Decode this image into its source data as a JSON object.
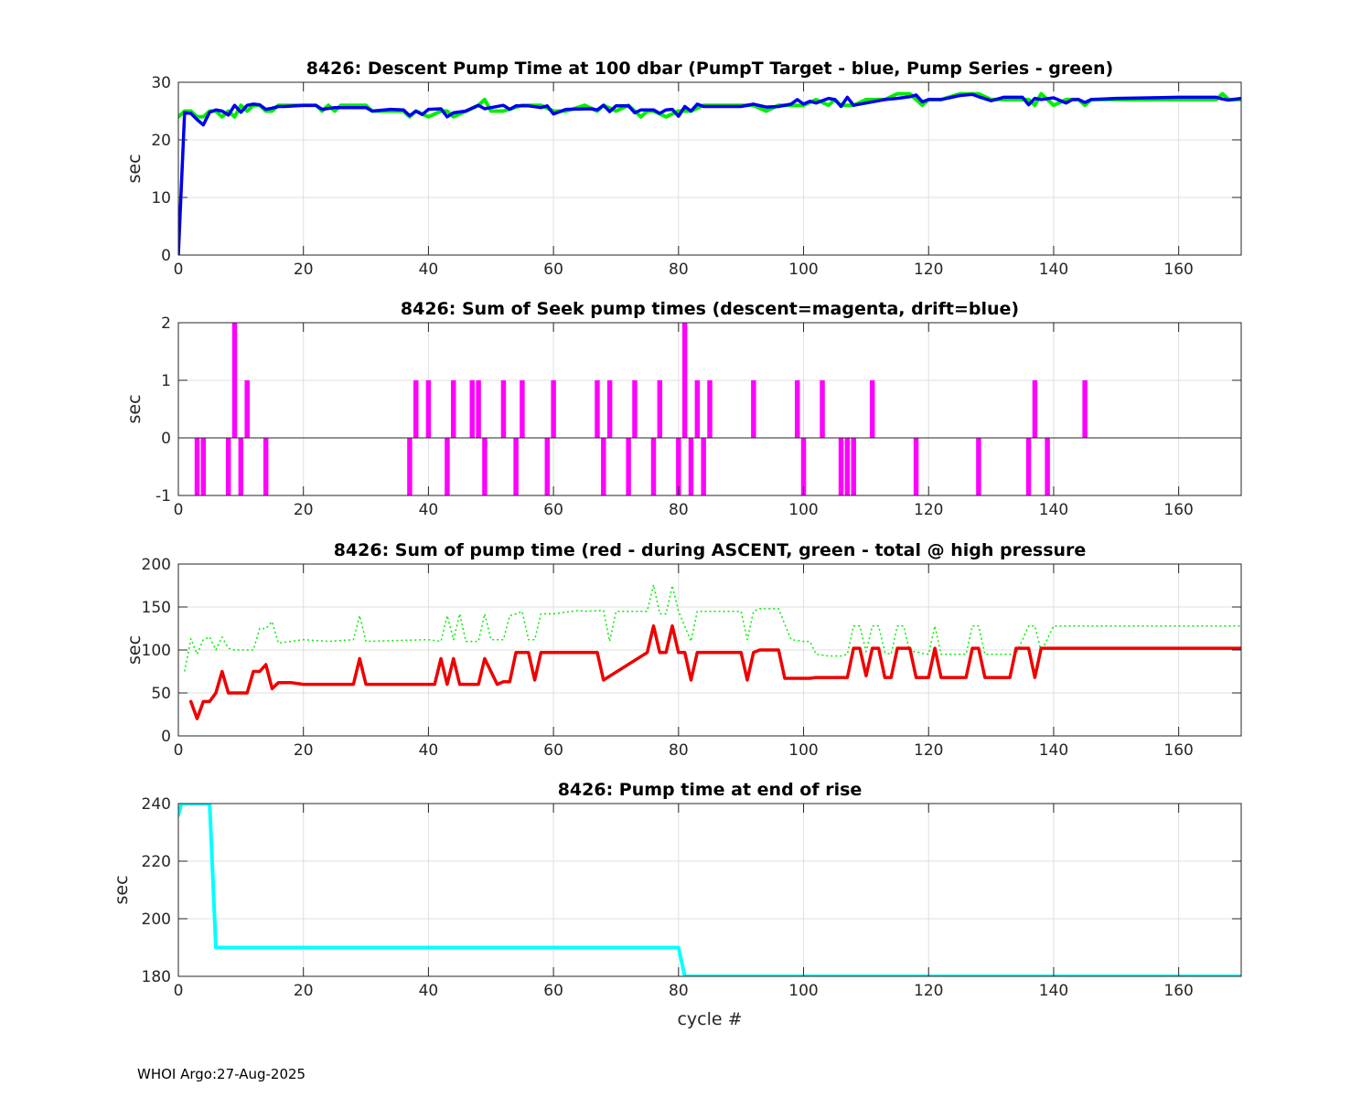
{
  "footer": "WHOI Argo:27-Aug-2025",
  "chart_data": [
    {
      "type": "line",
      "title": "8426: Descent Pump Time at 100 dbar (PumpT Target - blue, Pump Series - green)",
      "xlabel": "",
      "ylabel": "sec",
      "xlim": [
        0,
        170
      ],
      "ylim": [
        0,
        30
      ],
      "xticks": [
        0,
        20,
        40,
        60,
        80,
        100,
        120,
        140,
        160
      ],
      "yticks": [
        0,
        10,
        20,
        30
      ],
      "grid": true,
      "series": [
        {
          "color": "#00ee00",
          "style": "solid",
          "width": 4,
          "x": [
            0,
            1,
            2,
            3,
            4,
            5,
            6,
            7,
            8,
            9,
            10,
            11,
            12,
            13,
            14,
            15,
            16,
            17,
            20,
            22,
            23,
            24,
            25,
            26,
            30,
            31,
            34,
            36,
            37,
            38,
            40,
            42,
            43,
            44,
            46,
            48,
            49,
            50,
            52,
            55,
            58,
            60,
            62,
            65,
            67,
            68,
            70,
            72,
            74,
            75,
            76,
            78,
            80,
            82,
            84,
            86,
            90,
            92,
            94,
            96,
            98,
            100,
            102,
            104,
            105,
            106,
            108,
            110,
            113,
            115,
            117,
            118,
            119,
            120,
            122,
            125,
            128,
            130,
            132,
            135,
            136,
            137,
            138,
            140,
            142,
            144,
            145,
            146,
            150,
            160,
            166,
            167,
            168,
            170
          ],
          "y": [
            24,
            25,
            25,
            24,
            24,
            25,
            25,
            24,
            25,
            24,
            26,
            25,
            26,
            26,
            25,
            25,
            26,
            26,
            26,
            26,
            25,
            26,
            25,
            26,
            26,
            25,
            25,
            25,
            24,
            25,
            24,
            25,
            25,
            24,
            25,
            26,
            27,
            25,
            25,
            26,
            26,
            25,
            25,
            26,
            25,
            26,
            25,
            26,
            24,
            25,
            25,
            24,
            25,
            25,
            26,
            26,
            26,
            26,
            25,
            26,
            26,
            26,
            27,
            26,
            27,
            26,
            26,
            27,
            27,
            28,
            28,
            27,
            26,
            27,
            27,
            28,
            28,
            27,
            27,
            27,
            27,
            26,
            28,
            26,
            27,
            27,
            26,
            27,
            27,
            27,
            27,
            28,
            27,
            27
          ]
        },
        {
          "color": "#0000ee",
          "style": "solid",
          "width": 3.5,
          "x": [
            0,
            1,
            2,
            3,
            4,
            5,
            6,
            7,
            8,
            9,
            10,
            11,
            12,
            13,
            14,
            15,
            16,
            17,
            20,
            22,
            23,
            25,
            30,
            31,
            34,
            36,
            37,
            38,
            39,
            40,
            42,
            43,
            44,
            46,
            48,
            49,
            50,
            52,
            53,
            54,
            56,
            58,
            59,
            60,
            62,
            66,
            67,
            68,
            69,
            70,
            72,
            73,
            74,
            76,
            77,
            78,
            79,
            80,
            81,
            82,
            83,
            84,
            86,
            90,
            92,
            94,
            96,
            98,
            99,
            100,
            101,
            102,
            104,
            105,
            106,
            107,
            108,
            110,
            113,
            115,
            117,
            118,
            119,
            120,
            122,
            125,
            127,
            128,
            130,
            132,
            134,
            135,
            136,
            137,
            138,
            140,
            142,
            143,
            144,
            145,
            146,
            150,
            160,
            165,
            166,
            167,
            168,
            170
          ],
          "y": [
            0,
            24.7,
            24.6,
            23.5,
            22.6,
            24.8,
            25.2,
            25.0,
            24.3,
            26.0,
            24.8,
            26.0,
            26.2,
            26.1,
            25.3,
            25.5,
            25.8,
            25.8,
            26.0,
            26.0,
            25.3,
            25.6,
            25.6,
            25.0,
            25.3,
            25.2,
            24.2,
            25.0,
            24.4,
            25.3,
            25.4,
            24.0,
            24.7,
            25.0,
            26.0,
            25.4,
            25.6,
            26.0,
            25.3,
            25.9,
            25.9,
            25.6,
            25.9,
            24.5,
            25.3,
            25.4,
            25.2,
            26.0,
            24.9,
            25.9,
            25.9,
            24.7,
            25.2,
            25.2,
            24.6,
            25.2,
            25.3,
            24.1,
            25.8,
            25.0,
            26.2,
            25.8,
            25.8,
            25.8,
            26.2,
            25.7,
            25.8,
            26.2,
            27.0,
            26.2,
            26.7,
            26.4,
            27.2,
            27.0,
            25.8,
            27.4,
            26.0,
            26.4,
            27.0,
            27.2,
            27.5,
            27.8,
            26.6,
            27.0,
            27.0,
            27.7,
            27.9,
            27.5,
            26.8,
            27.4,
            27.4,
            27.4,
            26.1,
            27.2,
            27.0,
            27.3,
            26.4,
            27.0,
            27.0,
            26.5,
            27.0,
            27.2,
            27.4,
            27.4,
            27.4,
            27.1,
            26.9,
            27.2
          ]
        }
      ]
    },
    {
      "type": "bar",
      "title": "8426: Sum of Seek pump times (descent=magenta, drift=blue)",
      "xlabel": "",
      "ylabel": "sec",
      "xlim": [
        0,
        170
      ],
      "ylim": [
        -1,
        2
      ],
      "xticks": [
        0,
        20,
        40,
        60,
        80,
        100,
        120,
        140,
        160
      ],
      "yticks": [
        -1,
        0,
        1,
        2
      ],
      "grid": true,
      "series": [
        {
          "name": "descent",
          "color": "#ff00ff",
          "x": [
            3,
            4,
            8,
            9,
            10,
            11,
            14,
            37,
            38,
            40,
            43,
            44,
            47,
            48,
            49,
            52,
            54,
            55,
            59,
            60,
            67,
            68,
            69,
            72,
            73,
            76,
            77,
            80,
            81,
            82,
            83,
            84,
            85,
            92,
            99,
            100,
            103,
            106,
            107,
            108,
            111,
            118,
            128,
            136,
            137,
            139,
            145
          ],
          "values": [
            -1,
            -1,
            -1,
            2,
            -1,
            1,
            -1,
            -1,
            1,
            1,
            -1,
            1,
            1,
            1,
            -1,
            1,
            -1,
            1,
            -1,
            1,
            1,
            -1,
            1,
            -1,
            1,
            -1,
            1,
            -1,
            2,
            -1,
            1,
            -1,
            1,
            1,
            1,
            -1,
            1,
            -1,
            -1,
            -1,
            1,
            -1,
            -1,
            -1,
            1,
            -1,
            1
          ]
        }
      ]
    },
    {
      "type": "line",
      "title": "8426: Sum of pump time (red - during ASCENT, green - total @ high pressure",
      "xlabel": "",
      "ylabel": "sec",
      "xlim": [
        0,
        170
      ],
      "ylim": [
        0,
        200
      ],
      "xticks": [
        0,
        20,
        40,
        60,
        80,
        100,
        120,
        140,
        160
      ],
      "yticks": [
        0,
        50,
        100,
        150,
        200
      ],
      "grid": true,
      "series": [
        {
          "color": "#00ee00",
          "style": "dotted",
          "width": 1.5,
          "x": [
            1,
            2,
            3,
            4,
            5,
            6,
            7,
            8,
            9,
            12,
            13,
            14,
            15,
            16,
            20,
            24,
            28,
            29,
            30,
            40,
            42,
            43,
            44,
            45,
            46,
            48,
            49,
            50,
            52,
            53,
            54,
            55,
            56,
            57,
            58,
            60,
            64,
            65,
            68,
            69,
            70,
            75,
            76,
            77,
            78,
            79,
            80,
            82,
            83,
            90,
            91,
            92,
            93,
            96,
            97,
            98,
            100,
            101,
            102,
            104,
            106,
            107,
            108,
            109,
            110,
            111,
            112,
            113,
            114,
            115,
            116,
            117,
            118,
            119,
            120,
            121,
            122,
            123,
            126,
            127,
            128,
            129,
            130,
            132,
            133,
            134,
            136,
            137,
            138,
            140,
            170
          ],
          "y": [
            75,
            113,
            95,
            112,
            115,
            100,
            115,
            102,
            100,
            100,
            125,
            125,
            133,
            108,
            112,
            110,
            112,
            140,
            110,
            112,
            110,
            140,
            112,
            142,
            110,
            110,
            142,
            112,
            112,
            140,
            142,
            145,
            112,
            112,
            142,
            142,
            146,
            145,
            146,
            110,
            145,
            145,
            176,
            142,
            142,
            175,
            145,
            110,
            145,
            145,
            112,
            145,
            148,
            148,
            130,
            112,
            110,
            110,
            95,
            93,
            93,
            95,
            128,
            128,
            98,
            128,
            128,
            97,
            95,
            128,
            128,
            98,
            98,
            96,
            95,
            128,
            95,
            95,
            95,
            128,
            128,
            95,
            95,
            95,
            95,
            95,
            128,
            128,
            98,
            128,
            128
          ]
        },
        {
          "color": "#ee0000",
          "style": "solid",
          "width": 3.5,
          "x": [
            2,
            3,
            4,
            5,
            6,
            7,
            8,
            9,
            11,
            12,
            13,
            14,
            15,
            16,
            18,
            20,
            28,
            29,
            30,
            41,
            42,
            43,
            44,
            45,
            48,
            49,
            51,
            52,
            53,
            54,
            56,
            57,
            58,
            66,
            67,
            68,
            75,
            76,
            77,
            78,
            79,
            80,
            81,
            82,
            83,
            90,
            91,
            92,
            93,
            94,
            96,
            97,
            100,
            101,
            102,
            107,
            108,
            109,
            110,
            111,
            112,
            113,
            114,
            115,
            116,
            117,
            118,
            119,
            120,
            121,
            122,
            126,
            127,
            128,
            129,
            133,
            134,
            135,
            136,
            137,
            138,
            140,
            170
          ],
          "y": [
            40,
            20,
            40,
            40,
            50,
            75,
            50,
            50,
            50,
            75,
            75,
            83,
            55,
            62,
            62,
            60,
            60,
            90,
            60,
            60,
            90,
            60,
            90,
            60,
            60,
            90,
            60,
            63,
            63,
            97,
            97,
            65,
            97,
            97,
            97,
            65,
            97,
            128,
            97,
            97,
            128,
            97,
            97,
            65,
            97,
            97,
            65,
            97,
            100,
            100,
            100,
            67,
            67,
            67,
            68,
            68,
            102,
            102,
            70,
            102,
            102,
            68,
            68,
            102,
            102,
            102,
            68,
            68,
            68,
            102,
            68,
            68,
            102,
            102,
            68,
            68,
            102,
            102,
            102,
            68,
            102,
            102,
            102
          ]
        }
      ]
    },
    {
      "type": "line",
      "title": "8426: Pump time at end of rise",
      "xlabel": "cycle #",
      "ylabel": "sec",
      "xlim": [
        0,
        170
      ],
      "ylim": [
        180,
        240
      ],
      "xticks": [
        0,
        20,
        40,
        60,
        80,
        100,
        120,
        140,
        160
      ],
      "yticks": [
        180,
        200,
        220,
        240
      ],
      "grid": true,
      "series": [
        {
          "color": "#00ffff",
          "style": "solid",
          "width": 4,
          "x": [
            0,
            0.5,
            5,
            6,
            80,
            81,
            170
          ],
          "y": [
            236,
            240,
            240,
            190,
            190,
            180,
            180
          ]
        }
      ]
    }
  ]
}
